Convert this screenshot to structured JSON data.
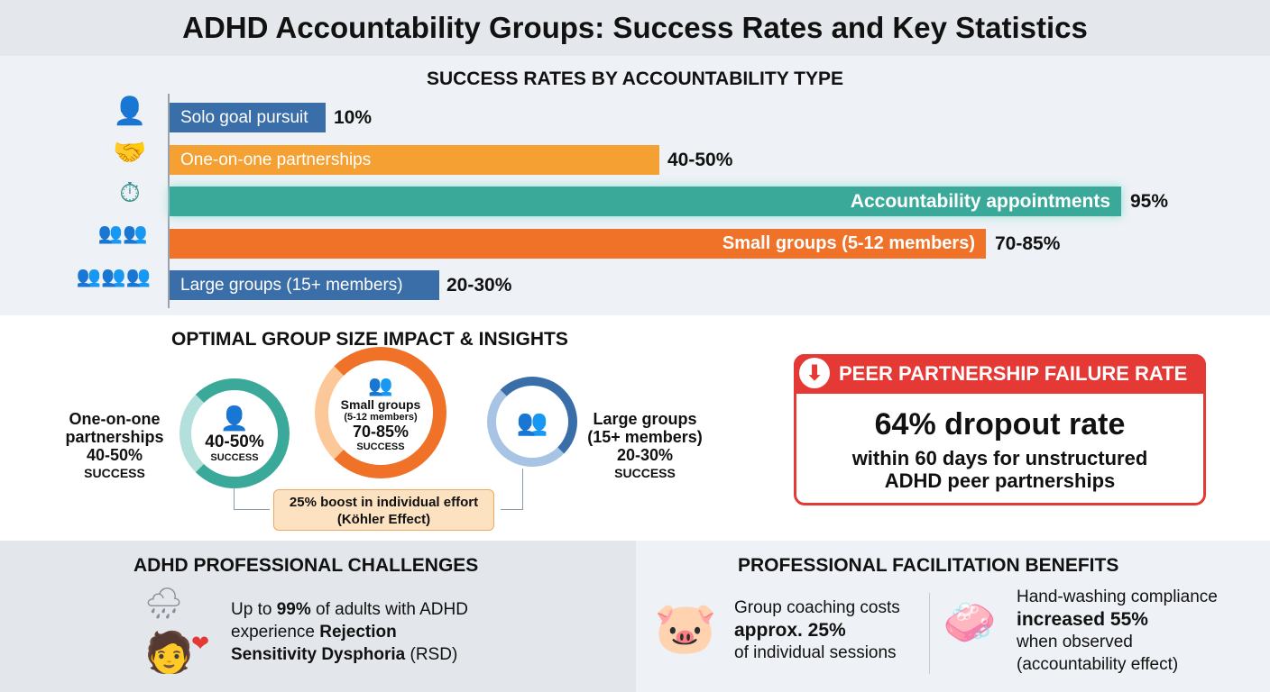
{
  "title": "ADHD Accountability Groups: Success Rates and Key Statistics",
  "chart_data": {
    "type": "bar",
    "title": "SUCCESS RATES BY ACCOUNTABILITY TYPE",
    "orientation": "horizontal",
    "categories": [
      "Solo goal pursuit",
      "One-on-one partnerships",
      "Accountability appointments",
      "Small groups (5-12 members)",
      "Large groups (15+ members)"
    ],
    "value_labels": [
      "10%",
      "40-50%",
      "95%",
      "70-85%",
      "20-30%"
    ],
    "values": [
      [
        10,
        10
      ],
      [
        40,
        50
      ],
      [
        95,
        95
      ],
      [
        70,
        85
      ],
      [
        20,
        30
      ]
    ],
    "icons": [
      "person-icon",
      "handshake-icon",
      "clock-person-icon",
      "small-group-icon",
      "large-group-icon"
    ],
    "colors": [
      "#3a6ea8",
      "#f4a033",
      "#3aa99a",
      "#f07228",
      "#3a6ea8"
    ]
  },
  "insights": {
    "title": "OPTIMAL GROUP SIZE IMPACT & INSIGHTS",
    "one_on_one": {
      "label1": "One-on-one",
      "label2": "partnerships",
      "value": "40-50%",
      "success": "SUCCESS"
    },
    "small": {
      "label1": "Small groups",
      "label2": "(5-12 members)",
      "value": "70-85%",
      "success": "SUCCESS"
    },
    "large": {
      "label1": "Large groups",
      "label2": "(15+ members)",
      "value": "20-30%",
      "success": "SUCCESS"
    },
    "kohler1": "25% boost in individual effort",
    "kohler2": "(Köhler Effect)"
  },
  "failure": {
    "title": "PEER PARTNERSHIP FAILURE RATE",
    "big": "64% dropout rate",
    "sub1": "within 60 days for unstructured",
    "sub2": "ADHD peer partnerships"
  },
  "challenges": {
    "title": "ADHD PROFESSIONAL CHALLENGES",
    "t1": "Up to ",
    "t2": "99%",
    "t3": " of adults with ADHD",
    "t4": "experience ",
    "t5": "Rejection",
    "t6": "Sensitivity Dysphoria",
    "t7": " (RSD)"
  },
  "benefits": {
    "title": "PROFESSIONAL FACILITATION BENEFITS",
    "cost1": "Group coaching costs",
    "cost2": "approx. 25%",
    "cost3": "of individual sessions",
    "wash1": "Hand-washing compliance",
    "wash2": "increased 55%",
    "wash3": "when observed",
    "wash4": "(accountability effect)"
  }
}
